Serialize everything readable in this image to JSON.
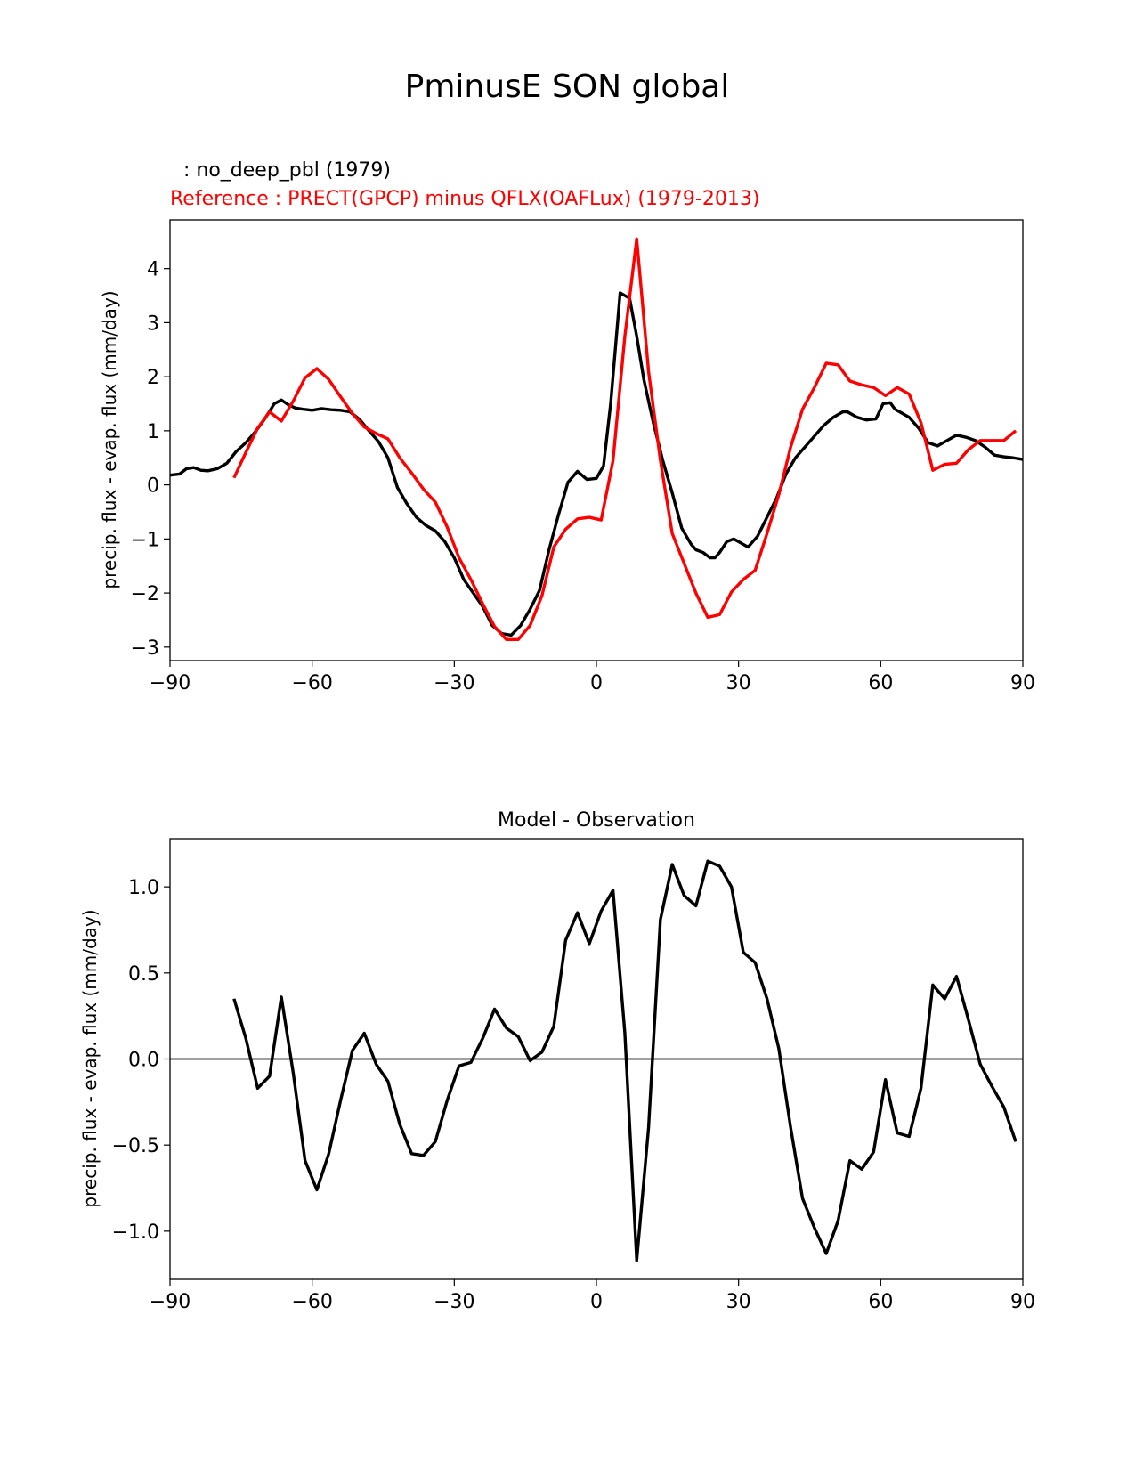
{
  "figure": {
    "suptitle": "PminusE SON global"
  },
  "chart_data": [
    {
      "type": "line",
      "test_label": " : no_deep_pbl (1979)",
      "ref_label": "Reference : PRECT(GPCP) minus QFLX(OAFLux) (1979-2013)",
      "xlabel": "",
      "ylabel": "precip. flux - evap. flux (mm/day)",
      "xlim": [
        -90,
        90
      ],
      "ylim": [
        -3.25,
        4.9
      ],
      "xticks": [
        -90,
        -60,
        -30,
        0,
        30,
        60,
        90
      ],
      "yticks": [
        -3,
        -2,
        -1,
        0,
        1,
        2,
        3,
        4
      ],
      "series": [
        {
          "name": "no_deep_pbl (1979)",
          "color": "#000000",
          "x": [
            -90,
            -88,
            -86.5,
            -85,
            -83.5,
            -82,
            -80,
            -78,
            -76,
            -74,
            -72,
            -70,
            -68,
            -66.5,
            -65,
            -63.5,
            -62,
            -60,
            -58,
            -56,
            -54,
            -52,
            -50,
            -48,
            -46,
            -44,
            -42,
            -40,
            -38,
            -36,
            -34,
            -32,
            -30,
            -28,
            -26,
            -24,
            -22,
            -20,
            -18,
            -16,
            -14,
            -12,
            -10,
            -8,
            -6,
            -4,
            -2,
            0,
            1.5,
            3,
            5,
            7,
            8.5,
            10,
            12,
            14,
            16,
            18,
            20,
            21,
            22.5,
            24,
            25,
            26,
            27.5,
            29,
            31,
            32,
            34,
            36,
            38,
            40,
            42,
            44,
            46,
            48,
            50,
            52,
            53,
            55,
            57,
            59,
            60.5,
            62,
            63,
            64,
            66,
            68,
            70,
            72,
            74,
            76,
            78,
            80,
            82,
            84,
            86,
            88,
            90
          ],
          "y": [
            0.18,
            0.2,
            0.3,
            0.32,
            0.27,
            0.26,
            0.3,
            0.4,
            0.62,
            0.78,
            0.98,
            1.22,
            1.5,
            1.57,
            1.48,
            1.42,
            1.4,
            1.38,
            1.41,
            1.39,
            1.38,
            1.35,
            1.21,
            1.0,
            0.8,
            0.5,
            -0.05,
            -0.35,
            -0.6,
            -0.75,
            -0.85,
            -1.05,
            -1.35,
            -1.75,
            -2.0,
            -2.25,
            -2.6,
            -2.75,
            -2.78,
            -2.6,
            -2.3,
            -1.95,
            -1.2,
            -0.55,
            0.05,
            0.25,
            0.1,
            0.12,
            0.35,
            1.5,
            3.55,
            3.45,
            2.75,
            1.95,
            1.15,
            0.45,
            -0.15,
            -0.8,
            -1.1,
            -1.2,
            -1.25,
            -1.35,
            -1.35,
            -1.25,
            -1.05,
            -1.0,
            -1.1,
            -1.15,
            -0.95,
            -0.6,
            -0.25,
            0.2,
            0.5,
            0.7,
            0.9,
            1.1,
            1.25,
            1.35,
            1.35,
            1.25,
            1.2,
            1.22,
            1.5,
            1.52,
            1.4,
            1.35,
            1.25,
            1.05,
            0.78,
            0.72,
            0.82,
            0.92,
            0.88,
            0.82,
            0.7,
            0.55,
            0.52,
            0.5,
            0.47
          ]
        },
        {
          "name": "Reference",
          "color": "#ff0000",
          "x": [
            -76.5,
            -74,
            -71.5,
            -69,
            -66.5,
            -64,
            -61.5,
            -59,
            -56.5,
            -54,
            -51.5,
            -49,
            -46.5,
            -44,
            -41.5,
            -39,
            -36.5,
            -34,
            -31.5,
            -29,
            -26.5,
            -24,
            -21.5,
            -19,
            -16.5,
            -14,
            -11.5,
            -9,
            -6.5,
            -4,
            -1.5,
            1,
            3.5,
            6,
            8.5,
            11,
            13.5,
            16,
            18.5,
            21,
            23.5,
            26,
            28.5,
            31,
            33.5,
            36,
            38.5,
            41,
            43.5,
            46,
            48.5,
            51,
            53.5,
            56,
            58.5,
            61,
            63.5,
            66,
            68.5,
            71,
            73.5,
            76,
            78.5,
            81,
            83.5,
            86,
            88.5
          ],
          "y": [
            0.13,
            0.6,
            1.05,
            1.35,
            1.18,
            1.55,
            1.98,
            2.15,
            1.95,
            1.63,
            1.32,
            1.07,
            0.95,
            0.85,
            0.5,
            0.22,
            -0.08,
            -0.32,
            -0.78,
            -1.35,
            -1.75,
            -2.2,
            -2.62,
            -2.86,
            -2.86,
            -2.6,
            -2.05,
            -1.15,
            -0.82,
            -0.63,
            -0.6,
            -0.65,
            0.45,
            2.75,
            4.55,
            2.1,
            0.45,
            -0.9,
            -1.45,
            -2.0,
            -2.45,
            -2.4,
            -1.98,
            -1.75,
            -1.58,
            -0.9,
            -0.18,
            0.7,
            1.4,
            1.8,
            2.25,
            2.22,
            1.92,
            1.85,
            1.8,
            1.65,
            1.8,
            1.68,
            1.15,
            0.27,
            0.38,
            0.4,
            0.65,
            0.82,
            0.82,
            0.82,
            1.0
          ]
        }
      ]
    },
    {
      "type": "line",
      "title": "Model - Observation",
      "xlabel": "",
      "ylabel": "precip. flux - evap. flux (mm/day)",
      "xlim": [
        -90,
        90
      ],
      "ylim": [
        -1.28,
        1.28
      ],
      "xticks": [
        -90,
        -60,
        -30,
        0,
        30,
        60,
        90
      ],
      "xtick_labels": [
        "−90",
        "−60",
        "−30",
        "0",
        "30",
        "60",
        "90"
      ],
      "yticks": [
        -1.0,
        -0.5,
        0.0,
        0.5,
        1.0
      ],
      "ytick_labels": [
        "−1.0",
        "−0.5",
        "0.0",
        "0.5",
        "1.0"
      ],
      "zero_line_color": "#808080",
      "series": [
        {
          "name": "Model - Observation",
          "color": "#000000",
          "x": [
            -76.5,
            -74,
            -71.5,
            -69,
            -66.5,
            -64,
            -61.5,
            -59,
            -56.5,
            -54,
            -51.5,
            -49,
            -46.5,
            -44,
            -41.5,
            -39,
            -36.5,
            -34,
            -31.5,
            -29,
            -26.5,
            -24,
            -21.5,
            -19,
            -16.5,
            -14,
            -11.5,
            -9,
            -6.5,
            -4,
            -1.5,
            1,
            3.5,
            6,
            8.5,
            11,
            13.5,
            16,
            18.5,
            21,
            23.5,
            26,
            28.5,
            31,
            33.5,
            36,
            38.5,
            41,
            43.5,
            46,
            48.5,
            51,
            53.5,
            56,
            58.5,
            61,
            63.5,
            66,
            68.5,
            71,
            73.5,
            76,
            78.5,
            81,
            83.5,
            86,
            88.5
          ],
          "y": [
            0.35,
            0.12,
            -0.17,
            -0.1,
            0.36,
            -0.08,
            -0.59,
            -0.76,
            -0.55,
            -0.24,
            0.05,
            0.15,
            -0.03,
            -0.13,
            -0.38,
            -0.55,
            -0.56,
            -0.48,
            -0.24,
            -0.04,
            -0.02,
            0.12,
            0.29,
            0.18,
            0.13,
            -0.01,
            0.04,
            0.19,
            0.69,
            0.85,
            0.67,
            0.86,
            0.98,
            0.15,
            -1.17,
            -0.4,
            0.81,
            1.13,
            0.95,
            0.89,
            1.15,
            1.12,
            1.0,
            0.62,
            0.56,
            0.35,
            0.06,
            -0.4,
            -0.81,
            -0.98,
            -1.13,
            -0.94,
            -0.59,
            -0.64,
            -0.54,
            -0.12,
            -0.43,
            -0.45,
            -0.17,
            0.43,
            0.35,
            0.48,
            0.23,
            -0.03,
            -0.16,
            -0.28,
            -0.48
          ]
        }
      ]
    }
  ]
}
